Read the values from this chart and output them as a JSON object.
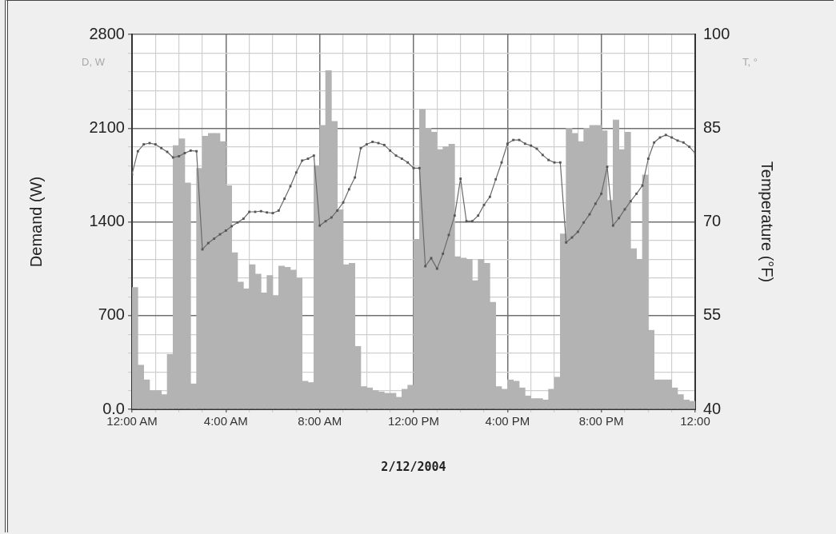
{
  "chart_data": {
    "type": "histogram",
    "xlabel": "2/12/2004",
    "ylabel": "Demand (W)",
    "y2label": "Temperature (°F)",
    "annotations": [
      "D, W",
      "T, °"
    ],
    "xlim": [
      "2004-02-12T00:00",
      "2004-02-13T00:00"
    ],
    "xticks": [
      {
        "value": "2004-02-12T00:00",
        "label": "12:00 AM"
      },
      {
        "value": "2004-02-12T01:00",
        "label": null
      },
      {
        "value": "2004-02-12T02:00",
        "label": null
      },
      {
        "value": "2004-02-12T03:00",
        "label": null
      },
      {
        "value": "2004-02-12T04:00",
        "label": "4:00 AM"
      },
      {
        "value": "2004-02-12T05:00",
        "label": null
      },
      {
        "value": "2004-02-12T06:00",
        "label": null
      },
      {
        "value": "2004-02-12T07:00",
        "label": null
      },
      {
        "value": "2004-02-12T08:00",
        "label": "8:00 AM"
      },
      {
        "value": "2004-02-12T09:00",
        "label": null
      },
      {
        "value": "2004-02-12T10:00",
        "label": null
      },
      {
        "value": "2004-02-12T11:00",
        "label": null
      },
      {
        "value": "2004-02-12T12:00",
        "label": "12:00 PM"
      },
      {
        "value": "2004-02-12T13:00",
        "label": null
      },
      {
        "value": "2004-02-12T14:00",
        "label": null
      },
      {
        "value": "2004-02-12T15:00",
        "label": null
      },
      {
        "value": "2004-02-12T16:00",
        "label": "4:00 PM"
      },
      {
        "value": "2004-02-12T17:00",
        "label": null
      },
      {
        "value": "2004-02-12T18:00",
        "label": null
      },
      {
        "value": "2004-02-12T19:00",
        "label": null
      },
      {
        "value": "2004-02-12T20:00",
        "label": "8:00 PM"
      },
      {
        "value": "2004-02-12T21:00",
        "label": null
      },
      {
        "value": "2004-02-12T22:00",
        "label": null
      },
      {
        "value": "2004-02-12T23:00",
        "label": null
      },
      {
        "value": "2004-02-13T00:00",
        "label": "12:00"
      }
    ],
    "ylim": [
      0,
      2800
    ],
    "yticks": [
      {
        "value": 0,
        "label": "0.0"
      },
      {
        "value": 140,
        "label": null
      },
      {
        "value": 280,
        "label": null
      },
      {
        "value": 420,
        "label": null
      },
      {
        "value": 560,
        "label": null
      },
      700,
      {
        "value": 840,
        "label": null
      },
      {
        "value": 980,
        "label": null
      },
      {
        "value": 1120,
        "label": null
      },
      {
        "value": 1260,
        "label": null
      },
      1400,
      {
        "value": 1540,
        "label": null
      },
      {
        "value": 1680,
        "label": null
      },
      {
        "value": 1820,
        "label": null
      },
      {
        "value": 1960,
        "label": null
      },
      2100,
      {
        "value": 2240,
        "label": null
      },
      {
        "value": 2380,
        "label": null
      },
      {
        "value": 2520,
        "label": null
      },
      {
        "value": 2660,
        "label": null
      },
      2800
    ],
    "y2lim": [
      40,
      100
    ],
    "y2ticks": [
      40,
      55,
      70,
      85,
      100
    ],
    "grid": true,
    "legend": false,
    "series": [
      {
        "type": "histogram",
        "color": "#b3b3b3",
        "bins": [
          "2004-02-12T00:00",
          "2004-02-12T00:15",
          "2004-02-12T00:30",
          "2004-02-12T00:45",
          "2004-02-12T01:00",
          "2004-02-12T01:15",
          "2004-02-12T01:30",
          "2004-02-12T01:45",
          "2004-02-12T02:00",
          "2004-02-12T02:15",
          "2004-02-12T02:30",
          "2004-02-12T02:45",
          "2004-02-12T03:00",
          "2004-02-12T03:15",
          "2004-02-12T03:30",
          "2004-02-12T03:45",
          "2004-02-12T04:00",
          "2004-02-12T04:15",
          "2004-02-12T04:30",
          "2004-02-12T04:45",
          "2004-02-12T05:00",
          "2004-02-12T05:15",
          "2004-02-12T05:30",
          "2004-02-12T05:45",
          "2004-02-12T06:00",
          "2004-02-12T06:15",
          "2004-02-12T06:30",
          "2004-02-12T06:45",
          "2004-02-12T07:00",
          "2004-02-12T07:15",
          "2004-02-12T07:30",
          "2004-02-12T07:45",
          "2004-02-12T08:00",
          "2004-02-12T08:15",
          "2004-02-12T08:30",
          "2004-02-12T08:45",
          "2004-02-12T09:00",
          "2004-02-12T09:15",
          "2004-02-12T09:30",
          "2004-02-12T09:45",
          "2004-02-12T10:00",
          "2004-02-12T10:15",
          "2004-02-12T10:30",
          "2004-02-12T10:45",
          "2004-02-12T11:00",
          "2004-02-12T11:15",
          "2004-02-12T11:30",
          "2004-02-12T11:45",
          "2004-02-12T12:00",
          "2004-02-12T12:15",
          "2004-02-12T12:30",
          "2004-02-12T12:45",
          "2004-02-12T13:00",
          "2004-02-12T13:15",
          "2004-02-12T13:30",
          "2004-02-12T13:45",
          "2004-02-12T14:00",
          "2004-02-12T14:15",
          "2004-02-12T14:30",
          "2004-02-12T14:45",
          "2004-02-12T15:00",
          "2004-02-12T15:15",
          "2004-02-12T15:30",
          "2004-02-12T15:45",
          "2004-02-12T16:00",
          "2004-02-12T16:15",
          "2004-02-12T16:30",
          "2004-02-12T16:45",
          "2004-02-12T17:00",
          "2004-02-12T17:15",
          "2004-02-12T17:30",
          "2004-02-12T17:45",
          "2004-02-12T18:00",
          "2004-02-12T18:15",
          "2004-02-12T18:30",
          "2004-02-12T18:45",
          "2004-02-12T19:00",
          "2004-02-12T19:15",
          "2004-02-12T19:30",
          "2004-02-12T19:45",
          "2004-02-12T20:00",
          "2004-02-12T20:15",
          "2004-02-12T20:30",
          "2004-02-12T20:45",
          "2004-02-12T21:00",
          "2004-02-12T21:15",
          "2004-02-12T21:30",
          "2004-02-12T21:45",
          "2004-02-12T22:00",
          "2004-02-12T22:15",
          "2004-02-12T22:30",
          "2004-02-12T22:45",
          "2004-02-12T23:00",
          "2004-02-12T23:15",
          "2004-02-12T23:30",
          "2004-02-12T23:45",
          "2004-02-13T00:00"
        ],
        "values": [
          910,
          330,
          220,
          140,
          140,
          110,
          410,
          1970,
          2020,
          1690,
          190,
          1800,
          2040,
          2060,
          2060,
          2000,
          1670,
          1170,
          950,
          900,
          1080,
          1010,
          870,
          1000,
          850,
          1070,
          1060,
          1040,
          980,
          210,
          200,
          1820,
          2120,
          2530,
          2150,
          1490,
          1080,
          1090,
          470,
          170,
          160,
          140,
          130,
          120,
          120,
          90,
          150,
          180,
          1270,
          2240,
          2100,
          2070,
          1940,
          1960,
          1980,
          1140,
          1130,
          1120,
          960,
          1120,
          1090,
          800,
          170,
          150,
          220,
          210,
          160,
          100,
          80,
          80,
          70,
          150,
          240,
          1310,
          2100,
          2060,
          2000,
          2100,
          2120,
          2120,
          2080,
          1560,
          2160,
          1940,
          2070,
          1200,
          1120,
          1750,
          590,
          220,
          220,
          220,
          160,
          110,
          70,
          60
        ]
      },
      {
        "type": "line",
        "axis": "y2",
        "color": "#6a6a6a",
        "marker": "square",
        "line_style": "solid",
        "x": [
          "2004-02-12T00:00",
          "2004-02-12T00:15",
          "2004-02-12T00:30",
          "2004-02-12T00:45",
          "2004-02-12T01:00",
          "2004-02-12T01:15",
          "2004-02-12T01:30",
          "2004-02-12T01:45",
          "2004-02-12T02:00",
          "2004-02-12T02:15",
          "2004-02-12T02:30",
          "2004-02-12T02:45",
          "2004-02-12T03:00",
          "2004-02-12T03:15",
          "2004-02-12T03:30",
          "2004-02-12T03:45",
          "2004-02-12T04:00",
          "2004-02-12T04:15",
          "2004-02-12T04:30",
          "2004-02-12T04:45",
          "2004-02-12T05:00",
          "2004-02-12T05:15",
          "2004-02-12T05:30",
          "2004-02-12T05:45",
          "2004-02-12T06:00",
          "2004-02-12T06:15",
          "2004-02-12T06:30",
          "2004-02-12T06:45",
          "2004-02-12T07:00",
          "2004-02-12T07:15",
          "2004-02-12T07:30",
          "2004-02-12T07:45",
          "2004-02-12T08:00",
          "2004-02-12T08:15",
          "2004-02-12T08:30",
          "2004-02-12T08:45",
          "2004-02-12T09:00",
          "2004-02-12T09:15",
          "2004-02-12T09:30",
          "2004-02-12T09:45",
          "2004-02-12T10:00",
          "2004-02-12T10:15",
          "2004-02-12T10:30",
          "2004-02-12T10:45",
          "2004-02-12T11:00",
          "2004-02-12T11:15",
          "2004-02-12T11:30",
          "2004-02-12T11:45",
          "2004-02-12T12:00",
          "2004-02-12T12:15",
          "2004-02-12T12:30",
          "2004-02-12T12:45",
          "2004-02-12T13:00",
          "2004-02-12T13:15",
          "2004-02-12T13:30",
          "2004-02-12T13:45",
          "2004-02-12T14:00",
          "2004-02-12T14:15",
          "2004-02-12T14:30",
          "2004-02-12T14:45",
          "2004-02-12T15:00",
          "2004-02-12T15:15",
          "2004-02-12T15:30",
          "2004-02-12T15:45",
          "2004-02-12T16:00",
          "2004-02-12T16:15",
          "2004-02-12T16:30",
          "2004-02-12T16:45",
          "2004-02-12T17:00",
          "2004-02-12T17:15",
          "2004-02-12T17:30",
          "2004-02-12T17:45",
          "2004-02-12T18:00",
          "2004-02-12T18:15",
          "2004-02-12T18:30",
          "2004-02-12T18:45",
          "2004-02-12T19:00",
          "2004-02-12T19:15",
          "2004-02-12T19:30",
          "2004-02-12T19:45",
          "2004-02-12T20:00",
          "2004-02-12T20:15",
          "2004-02-12T20:30",
          "2004-02-12T20:45",
          "2004-02-12T21:00",
          "2004-02-12T21:15",
          "2004-02-12T21:30",
          "2004-02-12T21:45",
          "2004-02-12T22:00",
          "2004-02-12T22:15",
          "2004-02-12T22:30",
          "2004-02-12T22:45",
          "2004-02-12T23:00",
          "2004-02-12T23:15",
          "2004-02-12T23:30",
          "2004-02-12T23:45",
          "2004-02-13T00:00"
        ],
        "values": [
          77.6,
          81.3,
          82.4,
          82.6,
          82.4,
          81.8,
          81.2,
          80.3,
          80.5,
          81.0,
          81.4,
          81.3,
          65.6,
          66.6,
          67.3,
          68.0,
          68.6,
          69.3,
          69.9,
          70.5,
          71.6,
          71.6,
          71.7,
          71.5,
          71.4,
          71.8,
          73.7,
          75.7,
          77.9,
          79.8,
          80.1,
          80.6,
          69.4,
          70.1,
          70.7,
          71.8,
          73.1,
          75.2,
          77.1,
          81.8,
          82.4,
          82.8,
          82.6,
          82.3,
          81.4,
          80.6,
          80.1,
          79.5,
          78.6,
          78.6,
          62.9,
          64.2,
          62.5,
          64.9,
          67.9,
          71.0,
          76.9,
          70.1,
          70.1,
          71.0,
          72.7,
          74.0,
          76.8,
          79.5,
          82.5,
          83.1,
          83.1,
          82.5,
          82.2,
          81.7,
          80.7,
          79.9,
          79.5,
          79.5,
          66.7,
          67.5,
          68.4,
          69.9,
          71.2,
          72.9,
          74.5,
          78.8,
          69.4,
          70.6,
          72.0,
          73.3,
          74.5,
          75.8,
          80.1,
          82.7,
          83.5,
          83.9,
          83.5,
          83.0,
          82.7,
          82.0,
          81.0
        ]
      }
    ]
  }
}
